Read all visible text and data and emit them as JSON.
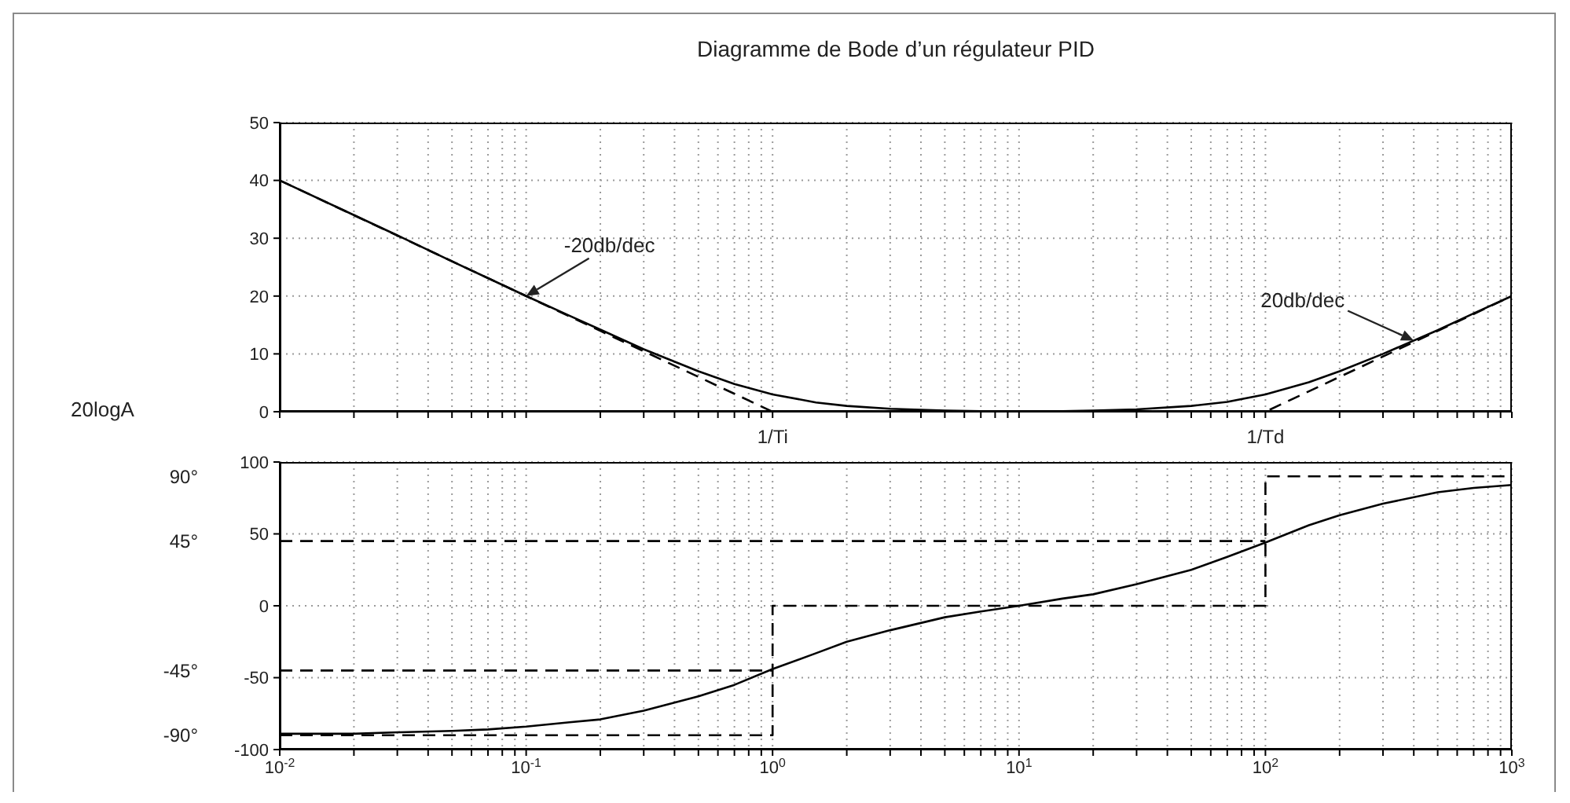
{
  "chart_data": [
    {
      "type": "line",
      "title": "Diagramme de Bode d’un régulateur PID",
      "ylabel": "20logA",
      "xlim": [
        0.01,
        1000
      ],
      "ylim": [
        0,
        50
      ],
      "yticks": [
        0,
        10,
        20,
        30,
        40,
        50
      ],
      "log": "x",
      "grid": true,
      "marker": "none",
      "tick_labels": "y",
      "xticks": [
        {
          "value": 0.01,
          "label": null
        },
        {
          "value": 0.02,
          "label": null
        },
        {
          "value": 0.03,
          "label": null
        },
        {
          "value": 0.04,
          "label": null
        },
        {
          "value": 0.05,
          "label": null
        },
        {
          "value": 0.06,
          "label": null
        },
        {
          "value": 0.07,
          "label": null
        },
        {
          "value": 0.08,
          "label": null
        },
        {
          "value": 0.09,
          "label": null
        },
        {
          "value": 0.1,
          "label": null
        },
        {
          "value": 0.2,
          "label": null
        },
        {
          "value": 0.3,
          "label": null
        },
        {
          "value": 0.4,
          "label": null
        },
        {
          "value": 0.5,
          "label": null
        },
        {
          "value": 0.6,
          "label": null
        },
        {
          "value": 0.7,
          "label": null
        },
        {
          "value": 0.8,
          "label": null
        },
        {
          "value": 0.9,
          "label": null
        },
        {
          "value": 1,
          "label": null
        },
        {
          "value": 2,
          "label": null
        },
        {
          "value": 3,
          "label": null
        },
        {
          "value": 4,
          "label": null
        },
        {
          "value": 5,
          "label": null
        },
        {
          "value": 6,
          "label": null
        },
        {
          "value": 7,
          "label": null
        },
        {
          "value": 8,
          "label": null
        },
        {
          "value": 9,
          "label": null
        },
        {
          "value": 10,
          "label": null
        },
        {
          "value": 20,
          "label": null
        },
        {
          "value": 30,
          "label": null
        },
        {
          "value": 40,
          "label": null
        },
        {
          "value": 50,
          "label": null
        },
        {
          "value": 60,
          "label": null
        },
        {
          "value": 70,
          "label": null
        },
        {
          "value": 80,
          "label": null
        },
        {
          "value": 90,
          "label": null
        },
        {
          "value": 100,
          "label": null
        },
        {
          "value": 200,
          "label": null
        },
        {
          "value": 300,
          "label": null
        },
        {
          "value": 400,
          "label": null
        },
        {
          "value": 500,
          "label": null
        },
        {
          "value": 600,
          "label": null
        },
        {
          "value": 700,
          "label": null
        },
        {
          "value": 800,
          "label": null
        },
        {
          "value": 900,
          "label": null
        },
        {
          "value": 1000,
          "label": null
        }
      ],
      "series": [
        {
          "color": "#000000",
          "line_style": "solid",
          "x": [
            0.01,
            0.02,
            0.03,
            0.05,
            0.07,
            0.1,
            0.15,
            0.2,
            0.3,
            0.5,
            0.7,
            1,
            1.5,
            2,
            3,
            5,
            7,
            10,
            15,
            20,
            30,
            50,
            70,
            100,
            150,
            200,
            300,
            500,
            700,
            1000
          ],
          "values": [
            40,
            34,
            30.5,
            26,
            23.1,
            20,
            16.6,
            14.2,
            10.8,
            7,
            4.8,
            3,
            1.6,
            1,
            0.5,
            0.2,
            0.1,
            0.1,
            0.1,
            0.2,
            0.4,
            1,
            1.7,
            3,
            5.1,
            7,
            10,
            14.1,
            17,
            20
          ]
        },
        {
          "color": "#000000",
          "line_style": "dashed",
          "x": [
            0.01,
            1,
            100,
            1000
          ],
          "values": [
            40,
            0,
            0,
            20
          ]
        }
      ],
      "annotations": [
        {
          "text": "-20db/dec",
          "x": 0.1,
          "y": 20
        },
        {
          "text": "20db/dec",
          "x": 400,
          "y": 12.3
        },
        {
          "text": "1/Ti",
          "x": 1,
          "y": 0
        },
        {
          "text": "1/Td",
          "x": 100,
          "y": 0
        }
      ]
    },
    {
      "type": "line",
      "xlim": [
        0.01,
        1000
      ],
      "ylim": [
        -100,
        100
      ],
      "yticks": [
        -100,
        -50,
        0,
        50,
        100
      ],
      "y2lim": [
        -100,
        100
      ],
      "y2ticks": [
        {
          "value": 90,
          "label": "90°"
        },
        {
          "value": 45,
          "label": "45°"
        },
        {
          "value": -45,
          "label": "-45°"
        },
        {
          "value": -90,
          "label": "-90°"
        }
      ],
      "log": "x",
      "grid": true,
      "marker": "none",
      "xticks": [
        {
          "value": 0.01,
          "label": "10$^{-2}$"
        },
        {
          "value": 0.02,
          "label": null
        },
        {
          "value": 0.03,
          "label": null
        },
        {
          "value": 0.04,
          "label": null
        },
        {
          "value": 0.05,
          "label": null
        },
        {
          "value": 0.06,
          "label": null
        },
        {
          "value": 0.07,
          "label": null
        },
        {
          "value": 0.08,
          "label": null
        },
        {
          "value": 0.09,
          "label": null
        },
        {
          "value": 0.1,
          "label": "10$^{-1}$"
        },
        {
          "value": 0.2,
          "label": null
        },
        {
          "value": 0.3,
          "label": null
        },
        {
          "value": 0.4,
          "label": null
        },
        {
          "value": 0.5,
          "label": null
        },
        {
          "value": 0.6,
          "label": null
        },
        {
          "value": 0.7,
          "label": null
        },
        {
          "value": 0.8,
          "label": null
        },
        {
          "value": 0.9,
          "label": null
        },
        {
          "value": 1,
          "label": "10$^{0}$"
        },
        {
          "value": 2,
          "label": null
        },
        {
          "value": 3,
          "label": null
        },
        {
          "value": 4,
          "label": null
        },
        {
          "value": 5,
          "label": null
        },
        {
          "value": 6,
          "label": null
        },
        {
          "value": 7,
          "label": null
        },
        {
          "value": 8,
          "label": null
        },
        {
          "value": 9,
          "label": null
        },
        {
          "value": 10,
          "label": "10$^{1}$"
        },
        {
          "value": 20,
          "label": null
        },
        {
          "value": 30,
          "label": null
        },
        {
          "value": 40,
          "label": null
        },
        {
          "value": 50,
          "label": null
        },
        {
          "value": 60,
          "label": null
        },
        {
          "value": 70,
          "label": null
        },
        {
          "value": 80,
          "label": null
        },
        {
          "value": 90,
          "label": null
        },
        {
          "value": 100,
          "label": "10$^{2}$"
        },
        {
          "value": 200,
          "label": null
        },
        {
          "value": 300,
          "label": null
        },
        {
          "value": 400,
          "label": null
        },
        {
          "value": 500,
          "label": null
        },
        {
          "value": 600,
          "label": null
        },
        {
          "value": 700,
          "label": null
        },
        {
          "value": 800,
          "label": null
        },
        {
          "value": 900,
          "label": null
        },
        {
          "value": 1000,
          "label": "10$^{3}$"
        }
      ],
      "series": [
        {
          "color": "#000000",
          "line_style": "solid",
          "x": [
            0.01,
            0.02,
            0.03,
            0.05,
            0.07,
            0.1,
            0.15,
            0.2,
            0.3,
            0.5,
            0.7,
            1,
            1.5,
            2,
            3,
            5,
            7,
            10,
            15,
            20,
            30,
            50,
            70,
            100,
            150,
            200,
            300,
            500,
            700,
            1000
          ],
          "values": [
            -89,
            -89,
            -88,
            -87,
            -86,
            -84,
            -81,
            -79,
            -73,
            -63,
            -55,
            -44,
            -33,
            -25,
            -17,
            -8,
            -4,
            0,
            5,
            8,
            15,
            25,
            34,
            44,
            56,
            63,
            71,
            79,
            82,
            84
          ]
        },
        {
          "color": "#000000",
          "line_style": "dashed",
          "x": [
            0.01,
            1,
            1,
            100,
            100,
            1000
          ],
          "values": [
            -90,
            -90,
            0,
            0,
            90,
            90
          ]
        },
        {
          "color": "#000000",
          "line_style": "dashed",
          "x": [
            0.01,
            1
          ],
          "values": [
            -45,
            -45
          ]
        },
        {
          "color": "#000000",
          "line_style": "dashed",
          "x": [
            0.01,
            100
          ],
          "values": [
            45,
            45
          ]
        }
      ]
    }
  ]
}
